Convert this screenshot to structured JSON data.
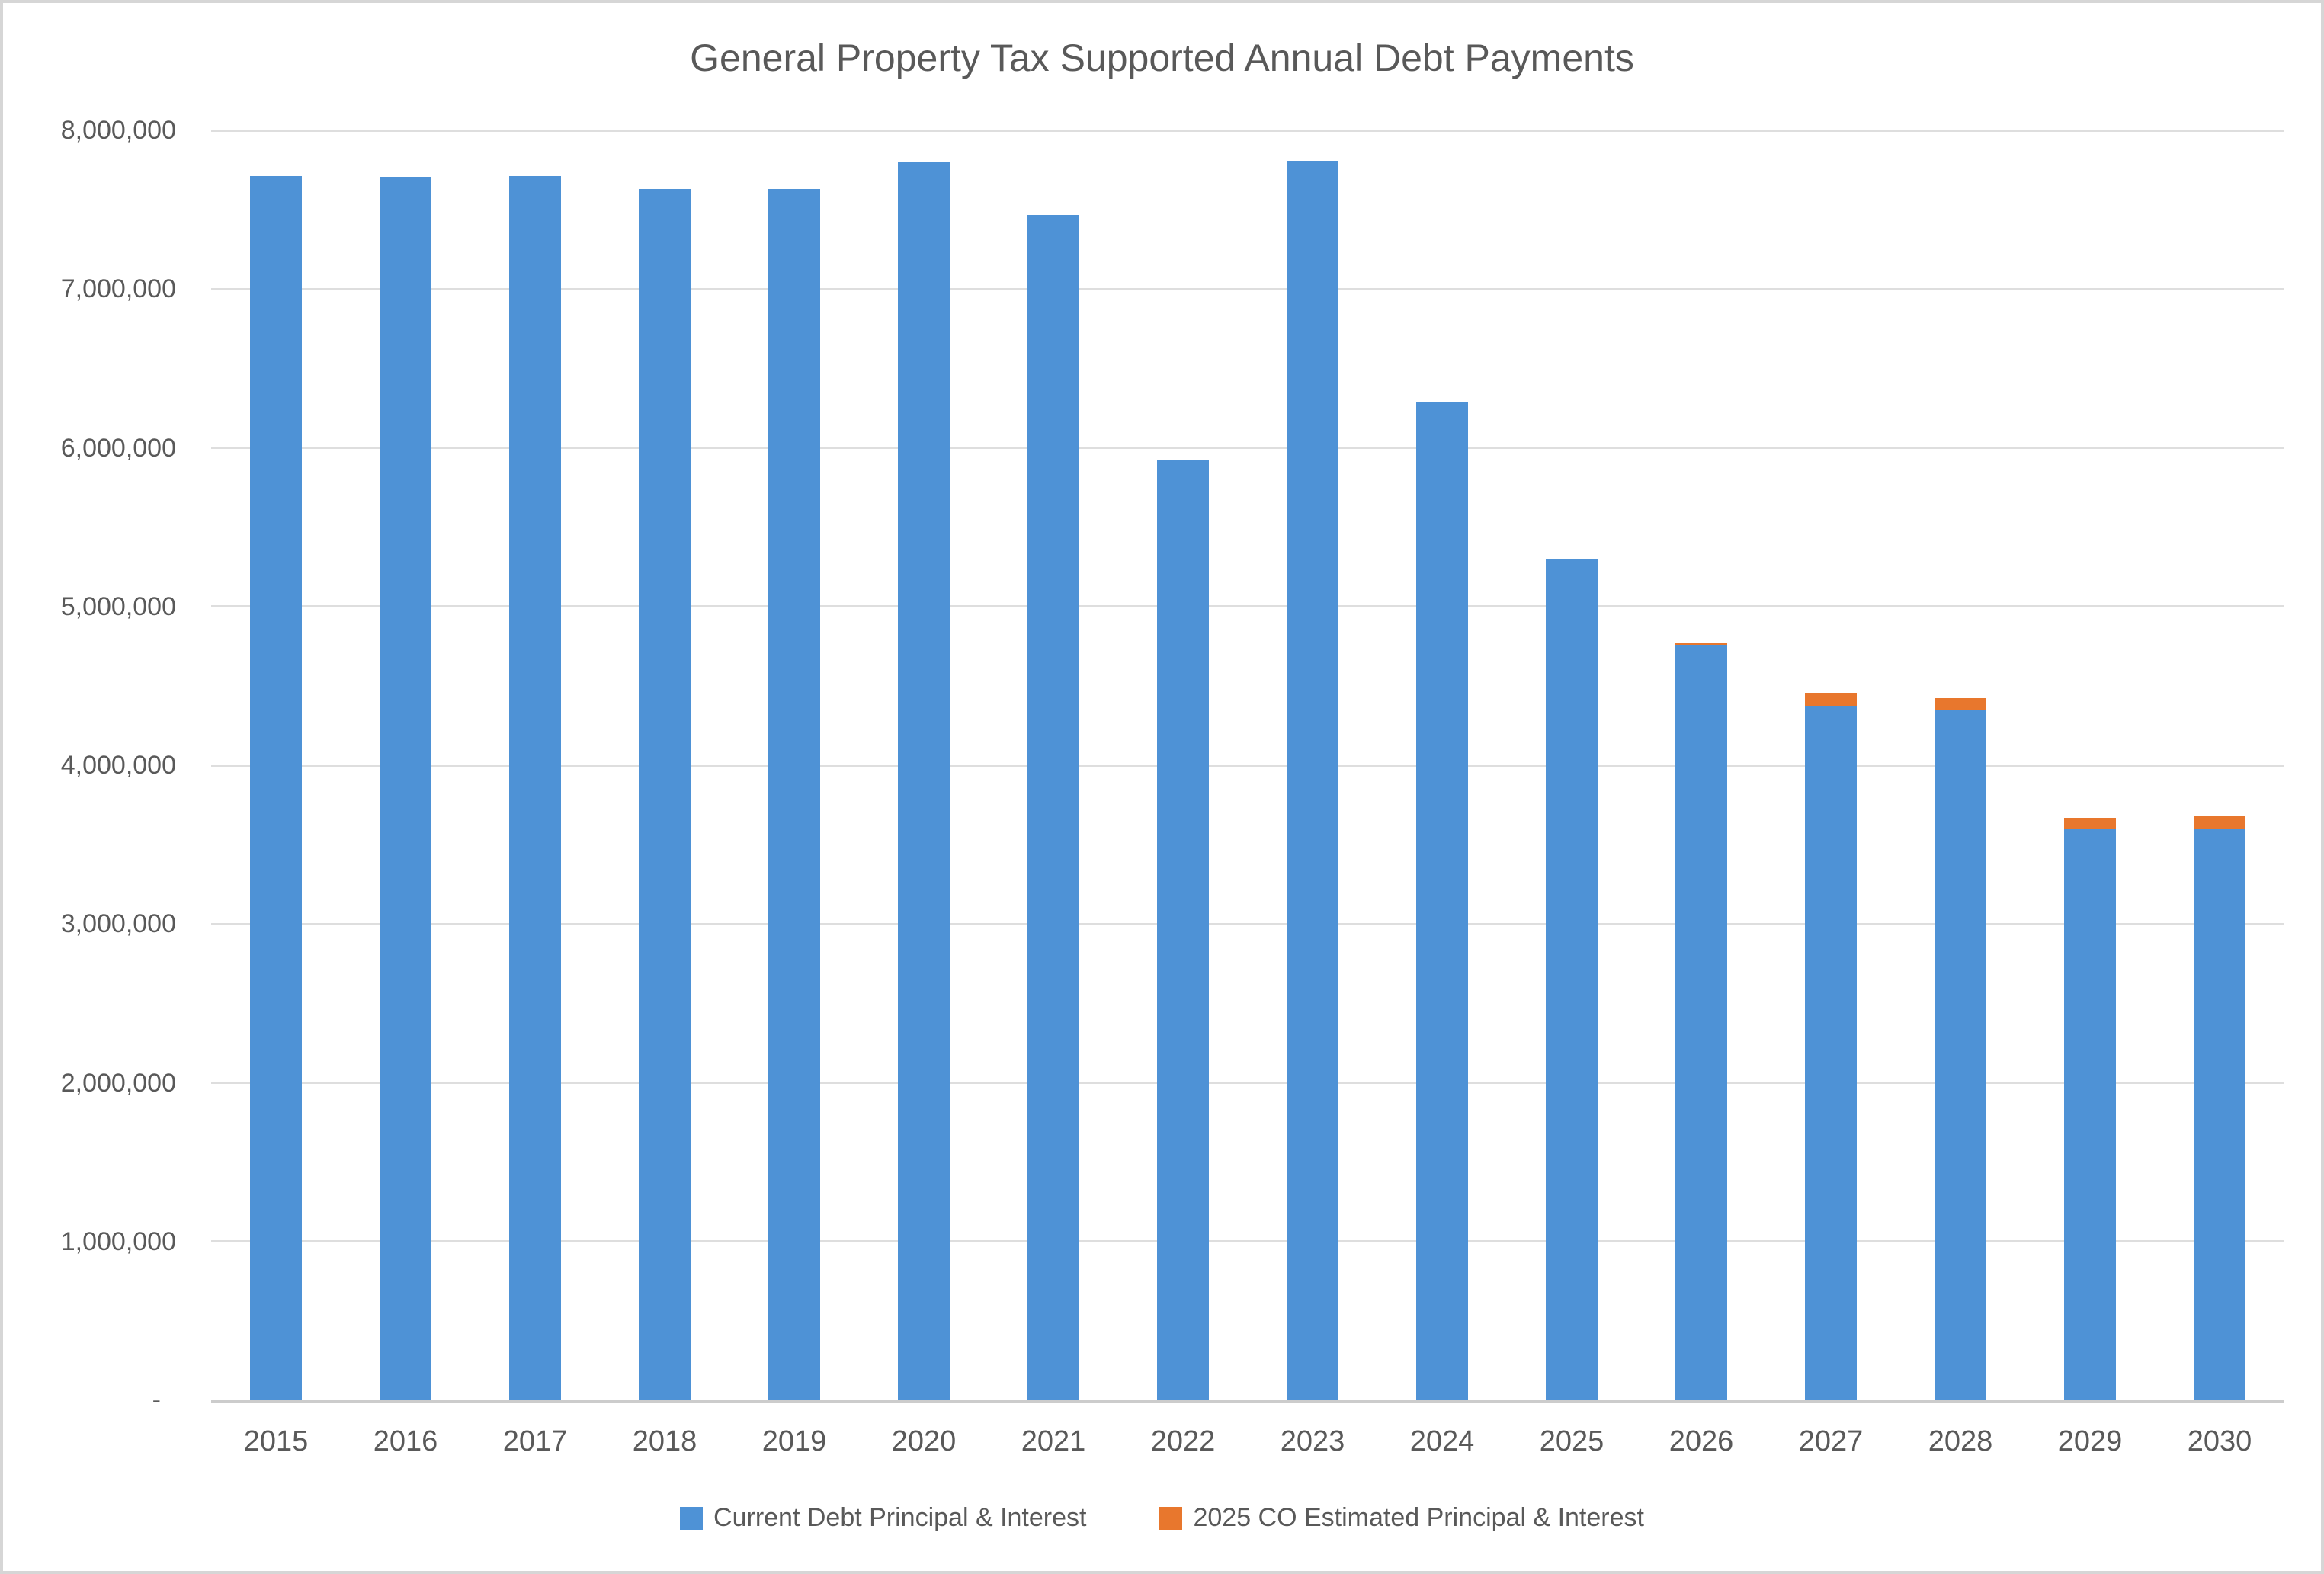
{
  "title": "General Property Tax Supported Annual Debt Payments",
  "colors": {
    "series_current_debt": "#4E92D6",
    "series_2025_co": "#E8772D",
    "text": "#595959",
    "gridline": "#DEDEDE",
    "axis_line": "#CCCCCC",
    "canvas_border": "#D6D6D6",
    "background": "#FFFFFF"
  },
  "y_axis": {
    "min": 0,
    "max": 8000000,
    "step": 1000000,
    "tick_labels_top_to_bottom": [
      "8,000,000",
      "7,000,000",
      "6,000,000",
      "5,000,000",
      "4,000,000",
      "3,000,000",
      "2,000,000",
      "1,000,000",
      "-"
    ]
  },
  "x_axis": {
    "categories": [
      "2015",
      "2016",
      "2017",
      "2018",
      "2019",
      "2020",
      "2021",
      "2022",
      "2023",
      "2024",
      "2025",
      "2026",
      "2027",
      "2028",
      "2029",
      "2030"
    ]
  },
  "legend": {
    "items": [
      {
        "label": "Current Debt Principal & Interest",
        "color": "#4E92D6"
      },
      {
        "label": "2025 CO Estimated Principal & Interest",
        "color": "#E8772D"
      }
    ]
  },
  "chart_data": {
    "type": "bar",
    "stacked": true,
    "title": "General Property Tax Supported Annual Debt Payments",
    "categories": [
      "2015",
      "2016",
      "2017",
      "2018",
      "2019",
      "2020",
      "2021",
      "2022",
      "2023",
      "2024",
      "2025",
      "2026",
      "2027",
      "2028",
      "2029",
      "2030"
    ],
    "series": [
      {
        "name": "Current Debt Principal & Interest",
        "color": "#4E92D6",
        "values": [
          7710000,
          7705000,
          7710000,
          7630000,
          7630000,
          7800000,
          7465000,
          5920000,
          7810000,
          6285000,
          5300000,
          4760000,
          4375000,
          4345000,
          3600000,
          3600000
        ]
      },
      {
        "name": "2025 CO Estimated Principal & Interest",
        "color": "#E8772D",
        "values": [
          0,
          0,
          0,
          0,
          0,
          0,
          0,
          0,
          0,
          0,
          0,
          15000,
          80000,
          78000,
          68000,
          77000
        ]
      }
    ],
    "ylim": [
      0,
      8000000
    ],
    "ytick_interval": 1000000,
    "grid": true,
    "legend_position": "bottom"
  }
}
